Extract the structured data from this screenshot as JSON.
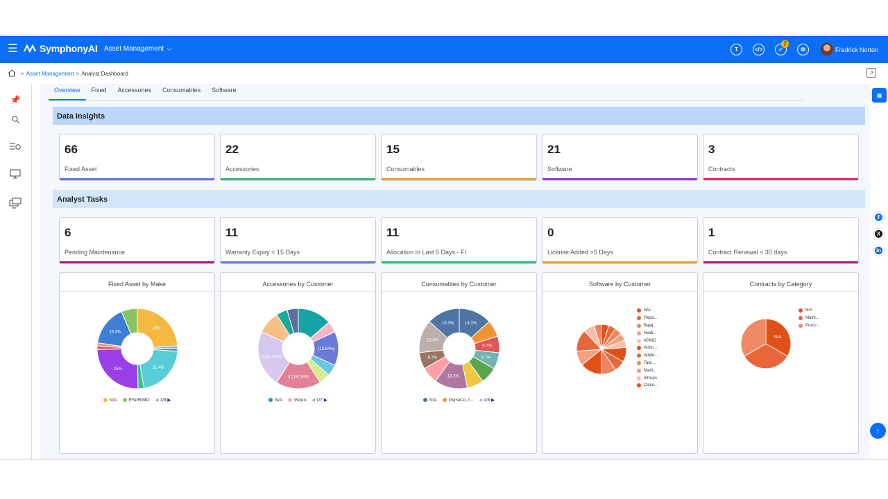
{
  "header": {
    "brand": "SymphonyAI",
    "module": "Asset Management",
    "notification_count": "7",
    "user": "Fredrick Norton"
  },
  "breadcrumb": {
    "module": "Asset Management",
    "page": "Analyst Dashboard"
  },
  "tabs": [
    "Overview",
    "Fixed",
    "Accessories",
    "Consumables",
    "Software"
  ],
  "data_insights": {
    "title": "Data Insights",
    "cards": [
      {
        "value": "66",
        "label": "Fixed Asset",
        "color": "#6b7be0"
      },
      {
        "value": "22",
        "label": "Accessories",
        "color": "#3cb87a"
      },
      {
        "value": "15",
        "label": "Consumables",
        "color": "#e8a43a"
      },
      {
        "value": "21",
        "label": "Software",
        "color": "#9b3fd6"
      },
      {
        "value": "3",
        "label": "Contracts",
        "color": "#e2336e"
      }
    ]
  },
  "analyst_tasks": {
    "title": "Analyst Tasks",
    "cards": [
      {
        "value": "6",
        "label": "Pending Maintenance",
        "color": "#b0188e"
      },
      {
        "value": "11",
        "label": "Warranty Expiry < 15 Days",
        "color": "#6b7be0"
      },
      {
        "value": "11",
        "label": "Allocation In Last 5 Days - FI",
        "color": "#3cb87a"
      },
      {
        "value": "0",
        "label": "License Added >5 Days",
        "color": "#e8a43a"
      },
      {
        "value": "1",
        "label": "Contract Renewal < 30 days",
        "color": "#b0188e"
      }
    ]
  },
  "chart_data": [
    {
      "type": "pie",
      "title": "Fixed Asset by Make",
      "donut": true,
      "slices": [
        {
          "value": 24,
          "color": "#f5b942",
          "label": "24%"
        },
        {
          "value": 1,
          "color": "#aaaaaa",
          "label": ""
        },
        {
          "value": 1.2,
          "color": "#3399dd",
          "label": ""
        },
        {
          "value": 21.4,
          "color": "#59cdd6",
          "label": "21.4%"
        },
        {
          "value": 2.4,
          "color": "#3cc08a",
          "label": ""
        },
        {
          "value": 25,
          "color": "#9b3fe6",
          "label": "25%"
        },
        {
          "value": 1.5,
          "color": "#e8556e",
          "label": ""
        },
        {
          "value": 1.2,
          "color": "#f0926a",
          "label": ""
        },
        {
          "value": 16.3,
          "color": "#3d7fd6",
          "label": "16.3%"
        },
        {
          "value": 6.5,
          "color": "#88c462",
          "label": ""
        }
      ],
      "legend": [
        {
          "name": "N/A",
          "color": "#f5b942"
        },
        {
          "name": "ESPRIMO",
          "color": "#88c462"
        }
      ],
      "pager": "1/8"
    },
    {
      "type": "pie",
      "title": "Accessories by Customer",
      "donut": true,
      "slices": [
        {
          "value": 13.64,
          "color": "#16a3a8",
          "label": ""
        },
        {
          "value": 4.5,
          "color": "#f5b6c8",
          "label": ""
        },
        {
          "value": 13.64,
          "color": "#6b7ad6",
          "label": "(13.64%)"
        },
        {
          "value": 4.5,
          "color": "#66c8e0",
          "label": ""
        },
        {
          "value": 4.5,
          "color": "#d2ee8e",
          "label": ""
        },
        {
          "value": 18.18,
          "color": "#e38296",
          "label": "4 (18.18%)"
        },
        {
          "value": 22.73,
          "color": "#d6c8ee",
          "label": "5 (22.73%)"
        },
        {
          "value": 9.1,
          "color": "#f7bf84",
          "label": ""
        },
        {
          "value": 4.5,
          "color": "#1aa898",
          "label": ""
        },
        {
          "value": 4.5,
          "color": "#5c6e9e",
          "label": ""
        }
      ],
      "legend": [
        {
          "name": "N/A",
          "color": "#16a3a8"
        },
        {
          "name": "Wipro",
          "color": "#f5b6c8"
        }
      ],
      "pager": "1/7"
    },
    {
      "type": "pie",
      "title": "Consumables by Customer",
      "donut": true,
      "slices": [
        {
          "value": 13.3,
          "color": "#4e75a4",
          "label": "13.3%"
        },
        {
          "value": 6.7,
          "color": "#ef9433",
          "label": ""
        },
        {
          "value": 6.7,
          "color": "#e05656",
          "label": "6.7%"
        },
        {
          "value": 6.7,
          "color": "#6fb4b2",
          "label": "6.7%"
        },
        {
          "value": 6.7,
          "color": "#5aa64e",
          "label": ""
        },
        {
          "value": 6.7,
          "color": "#efc741",
          "label": ""
        },
        {
          "value": 13.3,
          "color": "#ae76a0",
          "label": "13.3%"
        },
        {
          "value": 6.7,
          "color": "#ff9ea6",
          "label": ""
        },
        {
          "value": 6.7,
          "color": "#9a7460",
          "label": "6.7%"
        },
        {
          "value": 13.3,
          "color": "#bbb0ab",
          "label": "13.3%"
        },
        {
          "value": 13.3,
          "color": "#4e75a4",
          "label": "13.3%"
        }
      ],
      "legend": [
        {
          "name": "N/A",
          "color": "#4e75a4"
        },
        {
          "name": "PepsiCo, I...",
          "color": "#ef9433"
        }
      ],
      "pager": "1/8"
    },
    {
      "type": "pie",
      "title": "Software by Customer",
      "donut": false,
      "slices": [
        {
          "value": 1,
          "color": "#e2501a"
        },
        {
          "value": 1,
          "color": "#e8663a"
        },
        {
          "value": 1,
          "color": "#ee845e"
        },
        {
          "value": 1,
          "color": "#f2a080"
        },
        {
          "value": 1,
          "color": "#f6c0a8"
        },
        {
          "value": 2,
          "color": "#e2501a"
        },
        {
          "value": 1.5,
          "color": "#e8663a"
        },
        {
          "value": 2,
          "color": "#ee845e"
        },
        {
          "value": 3,
          "color": "#e2501a"
        },
        {
          "value": 2,
          "color": "#f2a080"
        },
        {
          "value": 3,
          "color": "#e8663a"
        },
        {
          "value": 1.5,
          "color": "#f6c0a8"
        },
        {
          "value": 1,
          "color": "#ee845e"
        }
      ],
      "legend": [
        {
          "name": "N/A",
          "color": "#e2501a"
        },
        {
          "name": "Pepsi...",
          "color": "#e8663a"
        },
        {
          "name": "Bajaj...",
          "color": "#ee845e"
        },
        {
          "name": "Nvidi...",
          "color": "#f2a080"
        },
        {
          "name": "KPMG",
          "color": "#f6c0a8"
        },
        {
          "name": "Airbn...",
          "color": "#e2501a"
        },
        {
          "name": "Apple...",
          "color": "#e8663a"
        },
        {
          "name": "Tata ...",
          "color": "#ee845e"
        },
        {
          "name": "Mahi...",
          "color": "#f2a080"
        },
        {
          "name": "Infosys",
          "color": "#f6c0a8"
        },
        {
          "name": "Cisco...",
          "color": "#e2501a"
        }
      ]
    },
    {
      "type": "pie",
      "title": "Contracts by Category",
      "donut": false,
      "slices": [
        {
          "value": 1,
          "color": "#e2501a",
          "label": "N/A"
        },
        {
          "value": 1,
          "color": "#e8663a",
          "label": ""
        },
        {
          "value": 1,
          "color": "#ee8a66",
          "label": ""
        }
      ],
      "legend": [
        {
          "name": "N/A",
          "color": "#e2501a"
        },
        {
          "name": "Maint...",
          "color": "#e8663a"
        },
        {
          "name": "Procu...",
          "color": "#ee8a66"
        }
      ]
    }
  ]
}
